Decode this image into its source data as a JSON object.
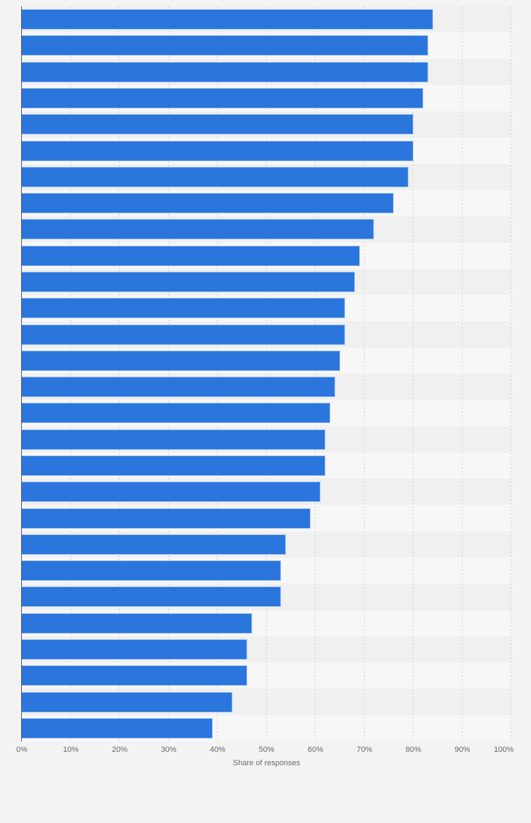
{
  "chart_data": {
    "type": "bar",
    "orientation": "horizontal",
    "title": "",
    "xlabel": "Share of responses",
    "ylabel": "",
    "xlim": [
      0,
      100
    ],
    "grid": "vertical dashed gridlines every 10%",
    "legend": "none",
    "categories_visible": false,
    "values": [
      84,
      83,
      83,
      82,
      80,
      80,
      79,
      76,
      72,
      69,
      68,
      66,
      66,
      65,
      64,
      63,
      62,
      62,
      61,
      59,
      54,
      53,
      53,
      47,
      46,
      46,
      43,
      39
    ],
    "x_tick_labels": [
      "0%",
      "10%",
      "20%",
      "30%",
      "40%",
      "50%",
      "60%",
      "70%",
      "80%",
      "90%",
      "100%"
    ],
    "x_tick_values": [
      0,
      10,
      20,
      30,
      40,
      50,
      60,
      70,
      80,
      90,
      100
    ]
  },
  "colors": {
    "bar": "#2b76dd",
    "page_background": "#f3f3f4",
    "stripe_dark": "#f0f0f1",
    "stripe_light": "#f7f7f8",
    "gridline": "#cdced2",
    "axis_line": "#55575a",
    "tick_label": "#65676b",
    "axis_title": "#666a6e"
  }
}
